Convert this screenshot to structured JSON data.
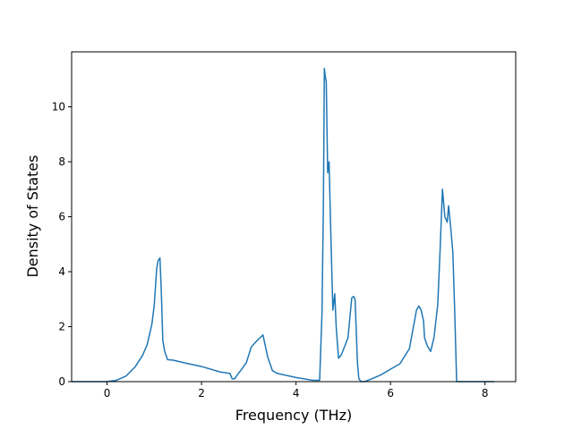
{
  "chart_data": {
    "type": "line",
    "xlabel": "Frequency (THz)",
    "ylabel": "Density of States",
    "xlim": [
      -0.75,
      8.65
    ],
    "ylim": [
      0,
      12.0
    ],
    "xticks": [
      0,
      2,
      4,
      6,
      8
    ],
    "yticks": [
      0,
      2,
      4,
      6,
      8,
      10
    ],
    "xtick_labels": [
      "0",
      "2",
      "4",
      "6",
      "8"
    ],
    "ytick_labels": [
      "0",
      "2",
      "4",
      "6",
      "8",
      "10"
    ],
    "grid": false,
    "line_color": "#1f77b4",
    "series": [
      {
        "x": [
          -0.75,
          0.0,
          0.2,
          0.4,
          0.6,
          0.75,
          0.85,
          0.95,
          1.0,
          1.05,
          1.08,
          1.12,
          1.15,
          1.18,
          1.22,
          1.28,
          1.4,
          1.6,
          2.0,
          2.4,
          2.6,
          2.65,
          2.7,
          2.78,
          2.85,
          2.95,
          3.05,
          3.15,
          3.3,
          3.35,
          3.4,
          3.5,
          3.6,
          4.0,
          4.35,
          4.5,
          4.55,
          4.58,
          4.6,
          4.62,
          4.64,
          4.67,
          4.7,
          4.73,
          4.78,
          4.82,
          4.85,
          4.88,
          4.9,
          4.95,
          5.0,
          5.1,
          5.18,
          5.22,
          5.25,
          5.3,
          5.33,
          5.38,
          5.45,
          5.6,
          5.8,
          6.0,
          6.2,
          6.4,
          6.55,
          6.6,
          6.65,
          6.7,
          6.72,
          6.78,
          6.85,
          6.92,
          7.0,
          7.05,
          7.1,
          7.15,
          7.2,
          7.23,
          7.28,
          7.32,
          7.36,
          7.4,
          7.45,
          7.5,
          7.8,
          8.2
        ],
        "y": [
          0,
          0,
          0.05,
          0.2,
          0.55,
          0.95,
          1.35,
          2.1,
          2.8,
          4.1,
          4.4,
          4.5,
          3.2,
          1.5,
          1.1,
          0.8,
          0.78,
          0.7,
          0.55,
          0.35,
          0.3,
          0.1,
          0.1,
          0.3,
          0.45,
          0.7,
          1.25,
          1.45,
          1.7,
          1.3,
          0.9,
          0.4,
          0.3,
          0.15,
          0.05,
          0.05,
          2.5,
          6.5,
          11.4,
          11.1,
          10.9,
          7.6,
          8.0,
          5.8,
          2.6,
          3.2,
          2.0,
          1.3,
          0.85,
          0.95,
          1.15,
          1.6,
          3.05,
          3.1,
          3.0,
          0.7,
          0.1,
          0.0,
          0.0,
          0.1,
          0.25,
          0.45,
          0.65,
          1.2,
          2.6,
          2.75,
          2.6,
          2.2,
          1.6,
          1.3,
          1.1,
          1.6,
          2.8,
          4.8,
          7.0,
          6.0,
          5.8,
          6.4,
          5.5,
          4.7,
          2.5,
          0.0,
          0.0,
          0.0,
          0.0,
          0.0
        ]
      }
    ]
  }
}
